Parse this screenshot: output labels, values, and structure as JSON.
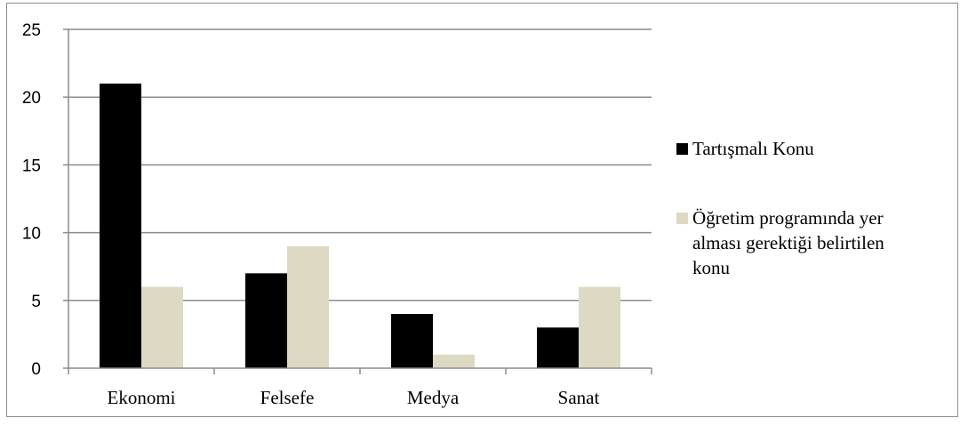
{
  "chart_data": {
    "type": "bar",
    "categories": [
      "Ekonomi",
      "Felsefe",
      "Medya",
      "Sanat"
    ],
    "series": [
      {
        "name": "Tartışmalı Konu",
        "values": [
          21,
          7,
          4,
          3
        ],
        "color": "#000000"
      },
      {
        "name": "Öğretim programında yer alması gerektiği belirtilen konu",
        "values": [
          6,
          9,
          1,
          6
        ],
        "color": "#ddd9c3"
      }
    ],
    "ylim": [
      0,
      25
    ],
    "yticks": [
      0,
      5,
      10,
      15,
      20,
      25
    ],
    "grid": true,
    "legend_position": "right",
    "title": "",
    "xlabel": "",
    "ylabel": ""
  }
}
